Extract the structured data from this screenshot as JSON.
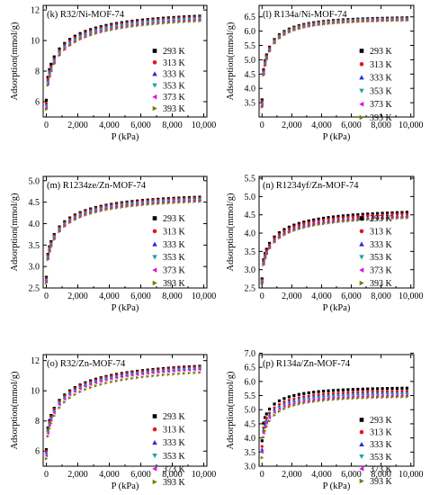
{
  "figure": {
    "x_label": "P (kPa)",
    "y_label": "Adsorption(mmol/g)"
  },
  "legend": {
    "entries": [
      {
        "label": "293 K",
        "color": "#000000",
        "marker": "square"
      },
      {
        "label": "313 K",
        "color": "#e8161b",
        "marker": "circle"
      },
      {
        "label": "333 K",
        "color": "#2b2bd9",
        "marker": "triangle-up"
      },
      {
        "label": "353 K",
        "color": "#18a5a5",
        "marker": "triangle-down"
      },
      {
        "label": "373 K",
        "color": "#e20ee0",
        "marker": "triangle-left"
      },
      {
        "label": "393 K",
        "color": "#7a7a05",
        "marker": "triangle-right"
      }
    ]
  },
  "chart_data": [
    {
      "type": "scatter",
      "title": "(k) R32/Ni-MOF-74",
      "xlabel": "P (kPa)",
      "ylabel": "Adsorption(mmol/g)",
      "xlim": [
        -200,
        10200
      ],
      "ylim": [
        5,
        12.3
      ],
      "xticks": [
        0,
        2000,
        4000,
        6000,
        8000,
        10000
      ],
      "xtick_labels": [
        "0",
        "2,000",
        "4,000",
        "6,000",
        "8,000",
        "10,000"
      ],
      "yticks": [
        6,
        8,
        10,
        12
      ],
      "ytick_labels": [
        "6",
        "8",
        "10",
        "12"
      ],
      "curve": {
        "y0": [
          6.1,
          5.9,
          5.8,
          5.7,
          5.6,
          5.5
        ],
        "ysat": [
          11.9,
          11.85,
          11.8,
          11.75,
          11.65,
          11.6
        ],
        "k": 3.0
      }
    },
    {
      "type": "scatter",
      "title": "(l) R134a/Ni-MOF-74",
      "xlabel": "P (kPa)",
      "ylabel": "Adsorption(mmol/g)",
      "xlim": [
        -200,
        10200
      ],
      "ylim": [
        3.0,
        6.9
      ],
      "xticks": [
        0,
        2000,
        4000,
        6000,
        8000,
        10000
      ],
      "xtick_labels": [
        "0",
        "2,000",
        "4,000",
        "6,000",
        "8,000",
        "10,000"
      ],
      "yticks": [
        3.5,
        4.0,
        4.5,
        5.0,
        5.5,
        6.0,
        6.5
      ],
      "ytick_labels": [
        "3.5",
        "4.0",
        "4.5",
        "5.0",
        "5.5",
        "6.0",
        "6.5"
      ],
      "curve": {
        "y0": [
          3.6,
          3.55,
          3.5,
          3.45,
          3.4,
          3.35
        ],
        "ysat": [
          6.5,
          6.48,
          6.47,
          6.45,
          6.43,
          6.42
        ],
        "k": 4.5
      }
    },
    {
      "type": "scatter",
      "title": "(m) R1234ze/Zn-MOF-74",
      "xlabel": "P (kPa)",
      "ylabel": "Adsorption(mmol/g)",
      "xlim": [
        -200,
        10200
      ],
      "ylim": [
        2.5,
        5.1
      ],
      "xticks": [
        0,
        2000,
        4000,
        6000,
        8000,
        10000
      ],
      "xtick_labels": [
        "0",
        "2,000",
        "4,000",
        "6,000",
        "8,000",
        "10,000"
      ],
      "yticks": [
        2.5,
        3.0,
        3.5,
        4.0,
        4.5,
        5.0
      ],
      "ytick_labels": [
        "2.5",
        "3.0",
        "3.5",
        "4.0",
        "4.5",
        "5.0"
      ],
      "curve": {
        "y0": [
          2.75,
          2.72,
          2.7,
          2.68,
          2.65,
          2.62
        ],
        "ysat": [
          4.7,
          4.68,
          4.66,
          4.64,
          4.62,
          4.6
        ],
        "k": 3.2
      }
    },
    {
      "type": "scatter",
      "title": "(n) R1234yf/Zn-MOF-74",
      "xlabel": "P (kPa)",
      "ylabel": "Adsorption(mmol/g)",
      "xlim": [
        -200,
        10200
      ],
      "ylim": [
        2.5,
        5.55
      ],
      "xticks": [
        0,
        2000,
        4000,
        6000,
        8000,
        10000
      ],
      "xtick_labels": [
        "0",
        "2,000",
        "4,000",
        "6,000",
        "8,000",
        "10,000"
      ],
      "yticks": [
        2.5,
        3.0,
        3.5,
        4.0,
        4.5,
        5.0,
        5.5
      ],
      "ytick_labels": [
        "2.5",
        "3.0",
        "3.5",
        "4.0",
        "4.5",
        "5.0",
        "5.5"
      ],
      "curve": {
        "y0": [
          2.75,
          2.72,
          2.7,
          2.68,
          2.65,
          2.62
        ],
        "ysat": [
          4.65,
          4.6,
          4.55,
          4.5,
          4.52,
          4.5
        ],
        "k": 3.2
      }
    },
    {
      "type": "scatter",
      "title": "(o) R32/Zn-MOF-74",
      "xlabel": "P (kPa)",
      "ylabel": "Adsorption(mmol/g)",
      "xlim": [
        -200,
        10200
      ],
      "ylim": [
        5,
        12.4
      ],
      "xticks": [
        0,
        2000,
        4000,
        6000,
        8000,
        10000
      ],
      "xtick_labels": [
        "0",
        "2,000",
        "4,000",
        "6,000",
        "8,000",
        "10,000"
      ],
      "yticks": [
        6,
        8,
        10,
        12
      ],
      "ytick_labels": [
        "6",
        "8",
        "10",
        "12"
      ],
      "curve": {
        "y0": [
          6.1,
          6.0,
          5.9,
          5.8,
          5.7,
          5.5
        ],
        "ysat": [
          12.0,
          11.95,
          11.9,
          11.85,
          11.8,
          11.6
        ],
        "k": 2.8
      }
    },
    {
      "type": "scatter",
      "title": "(p) R134a/Zn-MOF-74",
      "xlabel": "P (kPa)",
      "ylabel": "Adsorption(mmol/g)",
      "xlim": [
        -200,
        10200
      ],
      "ylim": [
        3.0,
        6.95
      ],
      "xticks": [
        0,
        2000,
        4000,
        6000,
        8000,
        10000
      ],
      "xtick_labels": [
        "0",
        "2,000",
        "4,000",
        "6,000",
        "8,000",
        "10,000"
      ],
      "yticks": [
        3.0,
        3.5,
        4.0,
        4.5,
        5.0,
        5.5,
        6.0,
        6.5,
        7.0
      ],
      "ytick_labels": [
        "3.0",
        "3.5",
        "4.0",
        "4.5",
        "5.0",
        "5.5",
        "6.0",
        "6.5",
        "7.0"
      ],
      "curve": {
        "y0": [
          3.9,
          3.7,
          3.6,
          3.5,
          3.5,
          3.3
        ],
        "ysat": [
          5.8,
          5.7,
          5.65,
          5.6,
          5.55,
          5.5
        ],
        "k": 4.0
      }
    }
  ]
}
